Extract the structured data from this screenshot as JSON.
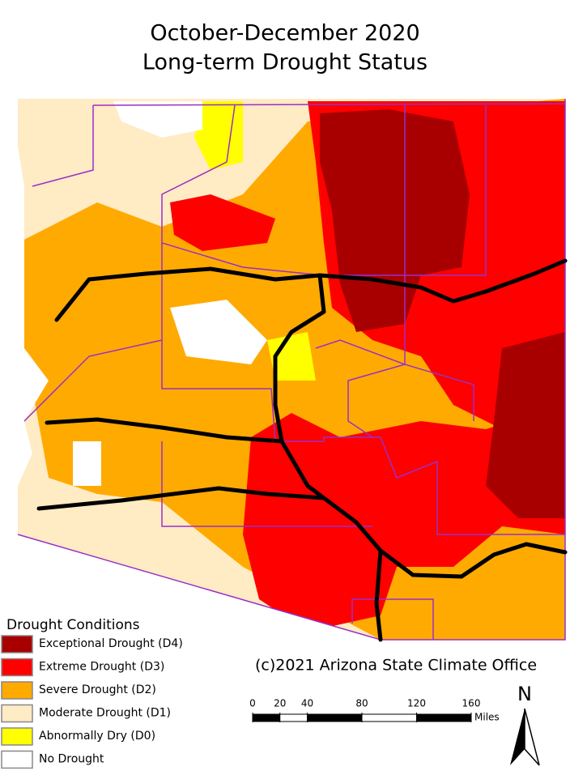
{
  "header": {
    "title_lines": [
      "October-December 2020",
      "Long-term Drought Status"
    ]
  },
  "legend": {
    "title": "Drought Conditions",
    "items": [
      {
        "label": "Exceptional Drought (D4)",
        "color": "#a80000"
      },
      {
        "label": "Extreme Drought (D3)",
        "color": "#ff0000"
      },
      {
        "label": "Severe Drought (D2)",
        "color": "#ffaa00"
      },
      {
        "label": "Moderate Drought (D1)",
        "color": "#ffebc4"
      },
      {
        "label": "Abnormally Dry (D0)",
        "color": "#ffff00"
      },
      {
        "label": "No Drought",
        "color": "#ffffff"
      }
    ]
  },
  "credit": "(c)2021 Arizona State Climate Office",
  "scale": {
    "ticks": [
      0,
      20,
      40,
      80,
      120,
      160
    ],
    "unit": "Miles"
  },
  "north": "N"
}
